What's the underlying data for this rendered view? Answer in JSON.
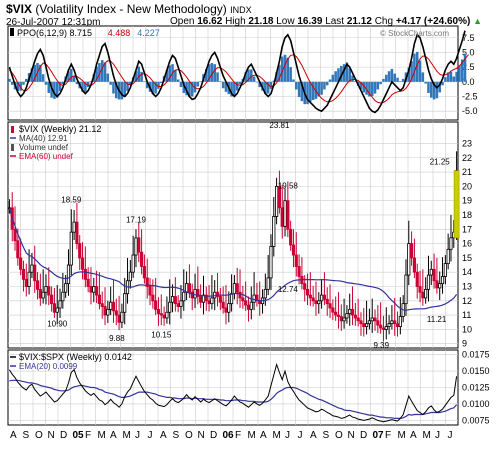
{
  "header": {
    "symbol": "$VIX",
    "name": "(Volatility Index - New Methodology)",
    "exchange": "INDX",
    "date_time": "26-Jul-2007 12:31pm",
    "open_label": "Open",
    "open": "16.62",
    "high_label": "High",
    "high": "21.18",
    "low_label": "Low",
    "low": "16.39",
    "last_label": "Last",
    "last": "21.12",
    "chg_label": "Chg",
    "chg": "+4.17 (+24.60%)",
    "chg_arrow": "▲",
    "watermark": "© StockCharts.com"
  },
  "colors": {
    "price_up": "#000000",
    "price_down": "#cc0033",
    "ma40": "#333399",
    "ppo_line": "#000000",
    "ppo_signal": "#cc0000",
    "ppo_hist": "#3377bb",
    "ratio_line": "#000000",
    "ratio_ema": "#333399",
    "grid": "#cccccc",
    "highlight": "#cccc00"
  },
  "chart_data": [
    {
      "type": "line",
      "panel": "ppo",
      "legend": [
        {
          "text": "PPO(6,12,9)",
          "value": "8.715",
          "color": "#000000"
        },
        {
          "text": "",
          "value": "4.488",
          "color": "#cc0000"
        },
        {
          "text": "",
          "value": "4.227",
          "color": "#3377bb"
        }
      ],
      "y_ticks": [
        "7.5",
        "5.0",
        "2.5",
        "0.0",
        "-2.5",
        "-5.0"
      ],
      "ylim": [
        -6.5,
        9.5
      ],
      "ppo": [
        2.5,
        1.0,
        -0.5,
        -1.8,
        -2.5,
        -2.0,
        -1.0,
        0.5,
        2.0,
        3.5,
        4.8,
        5.5,
        4.5,
        2.5,
        0.5,
        -1.0,
        -2.0,
        -2.5,
        -2.0,
        -1.0,
        0.5,
        2.0,
        3.0,
        2.0,
        0.5,
        -0.5,
        -1.5,
        -2.0,
        -1.5,
        -0.5,
        1.0,
        3.0,
        4.5,
        6.0,
        6.5,
        5.0,
        3.0,
        1.0,
        -0.5,
        -1.5,
        -2.2,
        -2.5,
        -2.0,
        -1.0,
        0.5,
        2.0,
        3.5,
        3.0,
        1.5,
        0.0,
        -1.0,
        -2.0,
        -2.5,
        -2.0,
        -1.0,
        0.5,
        2.0,
        3.5,
        4.5,
        4.0,
        2.5,
        1.0,
        -0.5,
        -1.5,
        -2.5,
        -3.0,
        -2.8,
        -2.0,
        -1.0,
        0.5,
        2.0,
        3.5,
        4.5,
        5.0,
        4.0,
        2.5,
        1.0,
        0.0,
        -1.0,
        -2.0,
        -2.5,
        -2.0,
        -1.0,
        0.0,
        1.5,
        2.5,
        3.0,
        2.0,
        1.0,
        0.0,
        -1.0,
        -2.0,
        -2.5,
        -2.0,
        -0.5,
        1.5,
        3.5,
        6.0,
        7.5,
        8.0,
        7.0,
        5.0,
        3.0,
        1.0,
        -0.5,
        -2.0,
        -3.0,
        -3.5,
        -4.0,
        -4.5,
        -4.8,
        -5.0,
        -4.5,
        -4.0,
        -3.0,
        -2.0,
        -1.0,
        0.0,
        1.0,
        2.0,
        3.0,
        2.5,
        1.5,
        0.5,
        -0.5,
        -1.5,
        -2.5,
        -3.5,
        -4.5,
        -5.0,
        -5.2,
        -4.8,
        -4.0,
        -3.0,
        -2.0,
        -1.0,
        0.0,
        -0.5,
        -1.0,
        -1.5,
        -1.0,
        0.5,
        2.0,
        4.0,
        6.5,
        8.0,
        7.5,
        6.0,
        4.0,
        2.0,
        0.5,
        -0.5,
        -1.0,
        -0.5,
        0.5,
        2.0,
        3.0,
        3.5,
        3.0,
        4.0,
        5.5,
        7.0,
        8.7
      ],
      "signal": [
        2.0,
        1.5,
        0.8,
        -0.2,
        -1.0,
        -1.5,
        -1.5,
        -1.0,
        -0.3,
        0.6,
        1.6,
        2.6,
        3.2,
        3.0,
        2.4,
        1.7,
        0.9,
        0.2,
        -0.4,
        -0.6,
        -0.4,
        0.2,
        0.8,
        1.0,
        0.9,
        0.6,
        0.2,
        -0.3,
        -0.6,
        -0.6,
        -0.3,
        0.4,
        1.3,
        2.3,
        3.2,
        3.6,
        3.5,
        3.0,
        2.3,
        1.5,
        0.8,
        0.1,
        -0.4,
        -0.5,
        -0.3,
        0.2,
        0.9,
        1.3,
        1.4,
        1.1,
        0.7,
        0.1,
        -0.5,
        -0.8,
        -0.8,
        -0.5,
        0.0,
        0.7,
        1.5,
        2.0,
        2.1,
        1.9,
        1.4,
        0.8,
        0.1,
        -0.5,
        -1.0,
        -1.2,
        -1.1,
        -0.8,
        -0.2,
        0.5,
        1.3,
        2.0,
        2.4,
        2.4,
        2.1,
        1.7,
        1.1,
        0.5,
        -0.1,
        -0.5,
        -0.6,
        -0.5,
        -0.1,
        0.4,
        0.9,
        1.1,
        1.1,
        0.9,
        0.5,
        0.0,
        -0.5,
        -0.8,
        -0.7,
        -0.2,
        0.6,
        1.7,
        2.9,
        3.9,
        4.5,
        4.6,
        4.3,
        3.6,
        2.8,
        1.8,
        0.8,
        -0.1,
        -0.9,
        -1.6,
        -2.3,
        -2.8,
        -3.2,
        -3.4,
        -3.4,
        -3.2,
        -2.8,
        -2.3,
        -1.7,
        -1.0,
        -0.3,
        0.2,
        0.4,
        0.4,
        0.2,
        -0.2,
        -0.7,
        -1.3,
        -2.0,
        -2.6,
        -3.2,
        -3.5,
        -3.6,
        -3.5,
        -3.2,
        -2.8,
        -2.2,
        -1.9,
        -1.7,
        -1.6,
        -1.5,
        -1.1,
        -0.4,
        0.5,
        1.7,
        2.9,
        3.9,
        4.4,
        4.3,
        3.9,
        3.2,
        2.5,
        1.8,
        1.3,
        1.1,
        1.2,
        1.4,
        1.8,
        2.1,
        2.3,
        2.7,
        3.2,
        3.9,
        4.5
      ]
    },
    {
      "type": "bar",
      "panel": "price",
      "legend": [
        {
          "text": "$VIX (Weekly)",
          "value": "21.12",
          "marker": "▮"
        },
        {
          "text": "MA(40)",
          "value": "12.91",
          "marker": "—"
        },
        {
          "text": "Volume",
          "value": "undef",
          "marker": "▮"
        },
        {
          "text": "EMA(60)",
          "value": "undef",
          "marker": "—"
        }
      ],
      "y_ticks": [
        9,
        10,
        11,
        12,
        13,
        14,
        15,
        16,
        17,
        18,
        19,
        20,
        21,
        22,
        23
      ],
      "ylim": [
        8.7,
        24.5
      ],
      "annotations": [
        {
          "text": "18.59",
          "week": 22,
          "value": 18.59
        },
        {
          "text": "10.90",
          "week": 17,
          "value": 10.9
        },
        {
          "text": "9.88",
          "week": 39,
          "value": 9.88
        },
        {
          "text": "17.19",
          "week": 45,
          "value": 17.19
        },
        {
          "text": "10.15",
          "week": 54,
          "value": 10.15
        },
        {
          "text": "23.81",
          "week": 96,
          "value": 23.81
        },
        {
          "text": "19.58",
          "week": 99,
          "value": 19.58
        },
        {
          "text": "12.74",
          "week": 99,
          "value": 12.74
        },
        {
          "text": "9.39",
          "week": 133,
          "value": 9.39
        },
        {
          "text": "21.25",
          "week": 153,
          "value": 21.25
        },
        {
          "text": "11.21",
          "week": 152,
          "value": 11.21
        }
      ],
      "close": [
        18.5,
        17.0,
        16.2,
        15.0,
        14.2,
        13.5,
        13.0,
        14.0,
        14.5,
        13.4,
        12.8,
        12.2,
        12.6,
        13.0,
        12.4,
        11.8,
        11.2,
        11.5,
        12.0,
        12.6,
        13.2,
        14.5,
        16.8,
        17.5,
        16.0,
        15.0,
        14.2,
        13.5,
        13.0,
        12.6,
        13.0,
        12.4,
        11.8,
        11.6,
        11.0,
        11.4,
        11.9,
        11.3,
        11.0,
        10.5,
        11.2,
        12.5,
        13.4,
        14.0,
        15.2,
        16.4,
        15.4,
        14.4,
        13.6,
        13.0,
        12.4,
        12.0,
        11.4,
        11.1,
        11.0,
        10.8,
        11.2,
        11.9,
        12.3,
        11.8,
        11.6,
        12.0,
        12.6,
        13.2,
        12.6,
        12.2,
        12.8,
        12.3,
        11.9,
        12.4,
        12.0,
        11.8,
        12.2,
        12.6,
        12.3,
        11.9,
        11.5,
        11.2,
        11.8,
        12.5,
        13.2,
        12.6,
        12.2,
        12.0,
        11.7,
        11.4,
        11.9,
        12.4,
        12.0,
        11.8,
        12.2,
        12.8,
        13.6,
        15.8,
        17.9,
        20.0,
        18.5,
        17.2,
        19.0,
        17.0,
        15.9,
        15.2,
        14.4,
        13.7,
        13.2,
        12.8,
        12.4,
        12.2,
        12.0,
        11.8,
        12.0,
        12.4,
        12.1,
        11.8,
        11.5,
        11.2,
        11.0,
        10.9,
        10.6,
        10.8,
        11.1,
        11.4,
        11.0,
        10.8,
        10.6,
        10.4,
        10.2,
        10.4,
        10.6,
        10.8,
        10.6,
        10.3,
        10.1,
        10.0,
        10.2,
        10.4,
        10.6,
        10.4,
        10.2,
        10.9,
        11.8,
        13.8,
        16.0,
        15.0,
        14.0,
        13.0,
        12.6,
        12.2,
        12.8,
        13.8,
        14.2,
        13.4,
        12.9,
        13.2,
        13.7,
        14.6,
        15.6,
        16.4,
        16.8,
        21.1
      ]
    },
    {
      "type": "line",
      "panel": "ratio",
      "legend": [
        {
          "text": "$VIX:$SPX (Weekly)",
          "value": "0.0142",
          "color": "#000000"
        },
        {
          "text": "EMA(20)",
          "value": "0.0099",
          "color": "#333399"
        }
      ],
      "y_ticks": [
        "0.0175",
        "0.0150",
        "0.0125",
        "0.0100",
        "0.0075"
      ],
      "ylim": [
        0.0068,
        0.0182
      ],
      "ratio": [
        0.0152,
        0.0145,
        0.014,
        0.0133,
        0.0128,
        0.0124,
        0.0121,
        0.0127,
        0.013,
        0.0122,
        0.0117,
        0.0112,
        0.0115,
        0.0118,
        0.0113,
        0.0108,
        0.0103,
        0.0105,
        0.011,
        0.0115,
        0.012,
        0.0132,
        0.0148,
        0.0152,
        0.014,
        0.0132,
        0.0126,
        0.012,
        0.0116,
        0.0113,
        0.0116,
        0.0111,
        0.0106,
        0.0104,
        0.0099,
        0.0102,
        0.0107,
        0.0102,
        0.0099,
        0.0095,
        0.01,
        0.0111,
        0.0118,
        0.0123,
        0.0133,
        0.0142,
        0.0134,
        0.0126,
        0.0119,
        0.0114,
        0.0109,
        0.0106,
        0.0101,
        0.0098,
        0.0097,
        0.0096,
        0.0099,
        0.0104,
        0.0108,
        0.0104,
        0.0102,
        0.0105,
        0.0109,
        0.0114,
        0.0109,
        0.0106,
        0.0111,
        0.0107,
        0.0103,
        0.0107,
        0.0104,
        0.0102,
        0.0105,
        0.0108,
        0.0105,
        0.0102,
        0.0099,
        0.0097,
        0.0101,
        0.0106,
        0.0112,
        0.0107,
        0.0103,
        0.0101,
        0.0098,
        0.0095,
        0.0099,
        0.0103,
        0.01,
        0.0098,
        0.0101,
        0.0106,
        0.0112,
        0.0128,
        0.0144,
        0.016,
        0.0148,
        0.0137,
        0.015,
        0.0134,
        0.0125,
        0.0119,
        0.0112,
        0.0106,
        0.0102,
        0.0098,
        0.0094,
        0.0092,
        0.009,
        0.0088,
        0.0089,
        0.0092,
        0.009,
        0.0087,
        0.0085,
        0.0082,
        0.0081,
        0.008,
        0.0078,
        0.0079,
        0.0081,
        0.0083,
        0.008,
        0.0079,
        0.0077,
        0.0076,
        0.0075,
        0.0076,
        0.0077,
        0.0079,
        0.0077,
        0.0075,
        0.0074,
        0.0073,
        0.0074,
        0.0075,
        0.0076,
        0.0075,
        0.0074,
        0.0078,
        0.0084,
        0.0098,
        0.0112,
        0.0104,
        0.0097,
        0.009,
        0.0087,
        0.0084,
        0.0088,
        0.0094,
        0.0097,
        0.0091,
        0.0087,
        0.0089,
        0.0092,
        0.0098,
        0.0104,
        0.011,
        0.0113,
        0.0142
      ],
      "ema": [
        0.0135,
        0.0136,
        0.0136,
        0.0136,
        0.0135,
        0.0134,
        0.0133,
        0.0132,
        0.0132,
        0.0131,
        0.013,
        0.0128,
        0.0127,
        0.0126,
        0.0125,
        0.0124,
        0.0122,
        0.0121,
        0.012,
        0.012,
        0.012,
        0.0121,
        0.0124,
        0.0126,
        0.0127,
        0.0128,
        0.0128,
        0.0127,
        0.0126,
        0.0125,
        0.0125,
        0.0124,
        0.0122,
        0.0121,
        0.0118,
        0.0117,
        0.0116,
        0.0115,
        0.0113,
        0.0111,
        0.011,
        0.011,
        0.0111,
        0.0112,
        0.0114,
        0.0116,
        0.0118,
        0.0118,
        0.0118,
        0.0118,
        0.0117,
        0.0116,
        0.0115,
        0.0113,
        0.0112,
        0.0111,
        0.011,
        0.011,
        0.0109,
        0.0109,
        0.0108,
        0.0108,
        0.0108,
        0.0109,
        0.0109,
        0.0108,
        0.0109,
        0.0108,
        0.0108,
        0.0108,
        0.0107,
        0.0107,
        0.0107,
        0.0107,
        0.0107,
        0.0106,
        0.0106,
        0.0105,
        0.0105,
        0.0105,
        0.0106,
        0.0106,
        0.0106,
        0.0105,
        0.0105,
        0.0104,
        0.0104,
        0.0104,
        0.0103,
        0.0103,
        0.0103,
        0.0103,
        0.0104,
        0.0107,
        0.0111,
        0.0116,
        0.0119,
        0.0121,
        0.0124,
        0.0125,
        0.0125,
        0.0125,
        0.0124,
        0.0122,
        0.012,
        0.0118,
        0.0116,
        0.0113,
        0.0111,
        0.0109,
        0.0107,
        0.0106,
        0.0104,
        0.0102,
        0.01,
        0.0098,
        0.0096,
        0.0094,
        0.0093,
        0.0091,
        0.009,
        0.009,
        0.0089,
        0.0088,
        0.0087,
        0.0086,
        0.0085,
        0.0084,
        0.0083,
        0.0083,
        0.0082,
        0.0081,
        0.008,
        0.008,
        0.0079,
        0.0079,
        0.0079,
        0.0078,
        0.0078,
        0.0078,
        0.0079,
        0.0081,
        0.0084,
        0.0083,
        0.0084,
        0.0084,
        0.0084,
        0.0084,
        0.0085,
        0.0086,
        0.0087,
        0.0087,
        0.0087,
        0.0087,
        0.0088,
        0.0089,
        0.0091,
        0.0093,
        0.0094,
        0.0099
      ]
    }
  ],
  "x_axis": {
    "labels": [
      "A",
      "S",
      "O",
      "N",
      "D",
      "05",
      "F",
      "M",
      "A",
      "M",
      "J",
      "J",
      "A",
      "S",
      "O",
      "N",
      "D",
      "06",
      "F",
      "M",
      "A",
      "M",
      "J",
      "J",
      "A",
      "S",
      "O",
      "N",
      "D",
      "07",
      "F",
      "M",
      "A",
      "M",
      "J",
      "J"
    ],
    "bold": [
      "05",
      "06",
      "07"
    ]
  }
}
